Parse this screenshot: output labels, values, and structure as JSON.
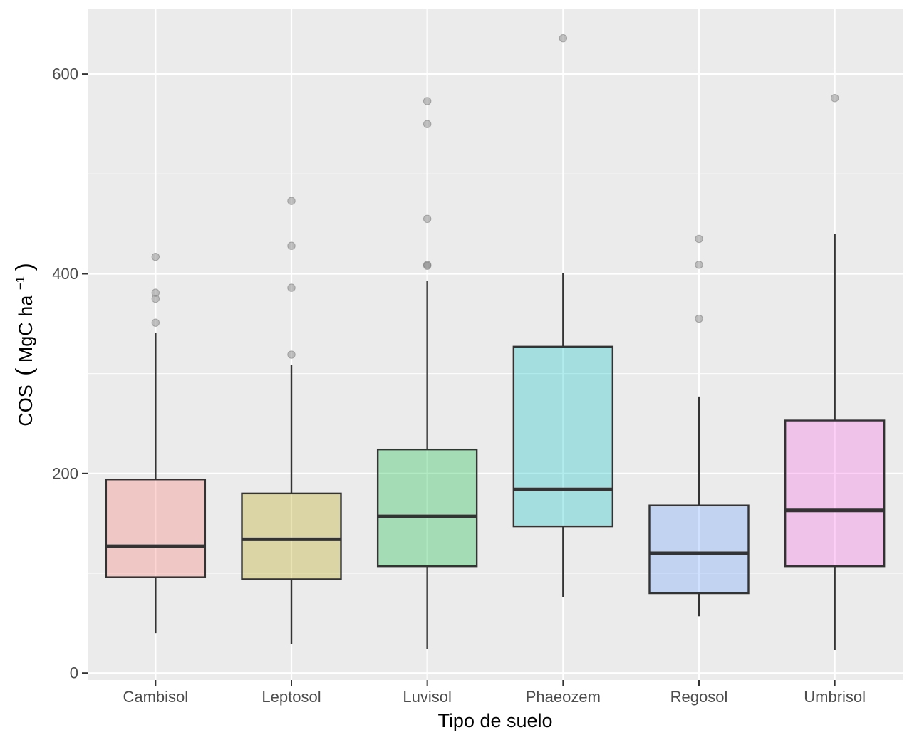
{
  "chart_data": {
    "type": "boxplot",
    "xlabel": "Tipo de suelo",
    "ylabel": {
      "prefix": "COS",
      "open_paren": "(",
      "unit_base": "MgC ha",
      "unit_superscript": "−1",
      "close_paren": ")"
    },
    "ylim": [
      -7,
      665
    ],
    "yticks": [
      0,
      200,
      400,
      600
    ],
    "ytick_labels": [
      "0",
      "200",
      "400",
      "600"
    ],
    "ygrid_minor": [
      100,
      300,
      500
    ],
    "grid": true,
    "categories": [
      "Cambisol",
      "Leptosol",
      "Luvisol",
      "Phaeozem",
      "Regosol",
      "Umbrisol"
    ],
    "boxes": [
      {
        "category": "Cambisol",
        "whisker_low": 40,
        "q1": 96,
        "median": 127,
        "q3": 194,
        "whisker_high": 341,
        "outliers": [
          351,
          375,
          381,
          417
        ],
        "color": "#F8766D"
      },
      {
        "category": "Leptosol",
        "whisker_low": 29,
        "q1": 94,
        "median": 134,
        "q3": 180,
        "whisker_high": 309,
        "outliers": [
          319,
          386,
          428,
          473
        ],
        "color": "#B79F00"
      },
      {
        "category": "Luvisol",
        "whisker_low": 24,
        "q1": 107,
        "median": 157,
        "q3": 224,
        "whisker_high": 393,
        "outliers": [
          408,
          409,
          455,
          550,
          573
        ],
        "color": "#00BA38"
      },
      {
        "category": "Phaeozem",
        "whisker_low": 76,
        "q1": 147,
        "median": 184,
        "q3": 327,
        "whisker_high": 401,
        "outliers": [
          636
        ],
        "color": "#00BFC4"
      },
      {
        "category": "Regosol",
        "whisker_low": 57,
        "q1": 80,
        "median": 120,
        "q3": 168,
        "whisker_high": 277,
        "outliers": [
          355,
          409,
          435
        ],
        "color": "#619CFF"
      },
      {
        "category": "Umbrisol",
        "whisker_low": 23,
        "q1": 107,
        "median": 163,
        "q3": 253,
        "whisker_high": 440,
        "outliers": [
          576
        ],
        "color": "#F564E3"
      }
    ],
    "colors": {
      "panel_background": "#EBEBEB",
      "grid_major": "#FFFFFF",
      "box_line": "#333333",
      "outlier_fill": "#7F7F7F",
      "tick_text": "#4D4D4D",
      "tick_mark": "#333333",
      "title_text": "#000000"
    }
  }
}
